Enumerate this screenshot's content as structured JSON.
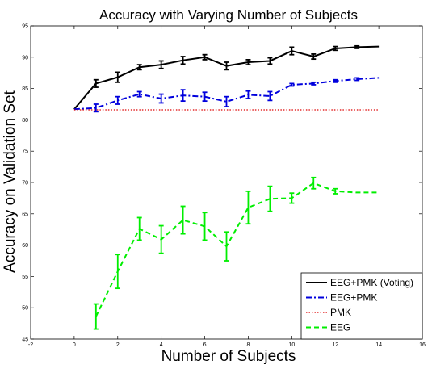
{
  "chart_data": {
    "type": "line",
    "title": "Accuracy with Varying Number of Subjects",
    "xlabel": "Number of Subjects",
    "ylabel": "Accuracy on Validation Set",
    "xlim": [
      -2,
      16
    ],
    "ylim": [
      45,
      95
    ],
    "xticks": [
      -2,
      0,
      2,
      4,
      6,
      8,
      10,
      12,
      14,
      16
    ],
    "yticks": [
      45,
      50,
      55,
      60,
      65,
      70,
      75,
      80,
      85,
      90,
      95
    ],
    "grid": false,
    "legend_position": "bottom-right",
    "series": [
      {
        "name": "EEG+PMK (Voting)",
        "color": "#000000",
        "dash": "solid",
        "x": [
          0,
          1,
          2,
          3,
          4,
          5,
          6,
          7,
          8,
          9,
          10,
          11,
          12,
          13,
          14
        ],
        "y": [
          81.7,
          85.8,
          86.8,
          88.4,
          88.8,
          89.5,
          90.0,
          88.6,
          89.2,
          89.4,
          91.0,
          90.1,
          91.4,
          91.6,
          91.7
        ],
        "err": [
          0,
          0.6,
          0.8,
          0.4,
          0.6,
          0.6,
          0.4,
          0.6,
          0.4,
          0.5,
          0.6,
          0.4,
          0.3,
          0.2,
          0
        ],
        "error_bars": [
          1,
          2,
          3,
          4,
          5,
          6,
          7,
          8,
          9,
          10,
          11,
          12,
          13
        ]
      },
      {
        "name": "EEG+PMK",
        "color": "#0000dd",
        "dash": "dashdot",
        "x": [
          0,
          1,
          2,
          3,
          4,
          5,
          6,
          7,
          8,
          9,
          10,
          11,
          12,
          13,
          14
        ],
        "y": [
          81.7,
          81.9,
          83.1,
          84.1,
          83.4,
          83.9,
          83.7,
          82.9,
          84.0,
          83.8,
          85.6,
          85.8,
          86.2,
          86.5,
          86.7
        ],
        "err": [
          0,
          0.6,
          0.6,
          0.4,
          0.7,
          0.9,
          0.7,
          0.8,
          0.6,
          0.7,
          0.2,
          0.2,
          0.2,
          0.2,
          0
        ],
        "error_bars": [
          1,
          2,
          3,
          4,
          5,
          6,
          7,
          8,
          9,
          10,
          11,
          12,
          13
        ]
      },
      {
        "name": "PMK",
        "color": "#dd0000",
        "dash": "dotted",
        "x": [
          0,
          14
        ],
        "y": [
          81.6,
          81.6
        ],
        "err": [
          0,
          0
        ],
        "error_bars": []
      },
      {
        "name": "EEG",
        "color": "#00ee00",
        "dash": "dashed",
        "x": [
          1,
          2,
          3,
          4,
          5,
          6,
          7,
          8,
          9,
          10,
          11,
          12,
          13,
          14
        ],
        "y": [
          48.6,
          55.8,
          62.6,
          60.9,
          64.0,
          63.0,
          59.8,
          66.0,
          67.4,
          67.5,
          69.9,
          68.6,
          68.4,
          68.4
        ],
        "err": [
          2.0,
          2.7,
          1.8,
          2.2,
          2.2,
          2.2,
          2.3,
          2.6,
          2.0,
          0.8,
          0.9,
          0.4,
          0,
          0
        ],
        "error_bars": [
          1,
          2,
          3,
          4,
          5,
          6,
          7,
          8,
          9,
          10,
          11,
          12
        ]
      }
    ]
  }
}
